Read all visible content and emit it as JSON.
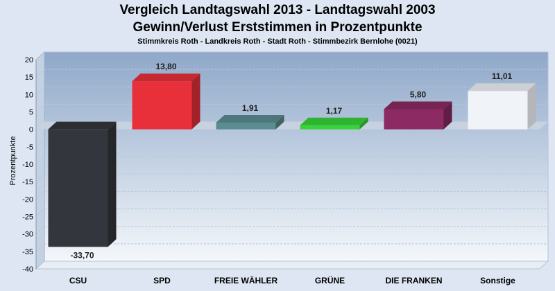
{
  "chart_data": {
    "type": "bar",
    "title": "Vergleich Landtagswahl 2013 - Landtagswahl 2003",
    "subtitle": "Gewinn/Verlust Erststimmen in Prozentpunkte",
    "subtitle2": "Stimmkreis Roth - Landkreis Roth - Stadt Roth - Stimmbezirk Bernlohe (0021)",
    "xlabel": "",
    "ylabel": "Prozentpunkte",
    "ylim": [
      -40,
      20
    ],
    "yticks": [
      "20",
      "15",
      "10",
      "5",
      "0",
      "-5",
      "-10",
      "-15",
      "-20",
      "-25",
      "-30",
      "-35",
      "-40"
    ],
    "yticks_values": [
      20,
      15,
      10,
      5,
      0,
      -5,
      -10,
      -15,
      -20,
      -25,
      -30,
      -35,
      -40
    ],
    "categories": [
      "CSU",
      "SPD",
      "FREIE WÄHLER",
      "GRÜNE",
      "DIE FRANKEN",
      "Sonstige"
    ],
    "values": [
      -33.7,
      13.8,
      1.91,
      1.17,
      5.8,
      11.01
    ],
    "value_labels": [
      "-33,70",
      "13,80",
      "1,91",
      "1,17",
      "5,80",
      "11,01"
    ],
    "colors": [
      "#33363c",
      "#e8303a",
      "#5b8c8f",
      "#36d43a",
      "#8b2a63",
      "#f0f3f8"
    ],
    "grid": true,
    "legend": "none"
  }
}
